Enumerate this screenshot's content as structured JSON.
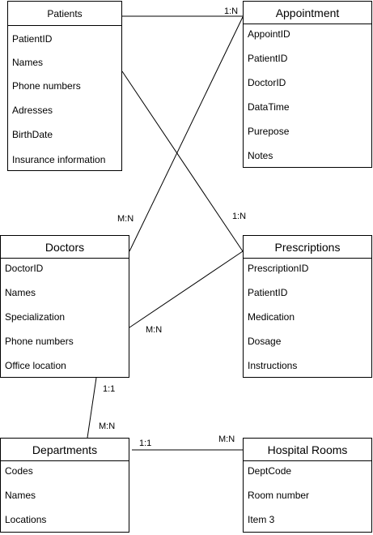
{
  "entities": {
    "patients": {
      "title": "Patients",
      "fields": [
        "PatientID",
        "Names",
        "Phone numbers",
        "Adresses",
        "BirthDate",
        "Insurance information"
      ]
    },
    "appointment": {
      "title": "Appointment",
      "fields": [
        "AppointID",
        "PatientID",
        "DoctorID",
        "DataTime",
        "Purepose",
        "Notes"
      ]
    },
    "doctors": {
      "title": "Doctors",
      "fields": [
        "DoctorID",
        "Names",
        "Specialization",
        "Phone numbers",
        "Office location"
      ]
    },
    "prescriptions": {
      "title": "Prescriptions",
      "fields": [
        "PrescriptionID",
        "PatientID",
        "Medication",
        "Dosage",
        "Instructions"
      ]
    },
    "departments": {
      "title": "Departments",
      "fields": [
        "Codes",
        "Names",
        "Locations"
      ]
    },
    "rooms": {
      "title": "Hospital Rooms",
      "fields": [
        "DeptCode",
        "Room number",
        "Item 3"
      ]
    }
  },
  "relationships": {
    "patients_appointment": "1:N",
    "doctors_appointment": "M:N",
    "patients_prescriptions": "1:N",
    "doctors_prescriptions": "M:N",
    "doctors_departments_top": "1:1",
    "doctors_departments_bottom": "M:N",
    "departments_rooms_left": "1:1",
    "departments_rooms_right": "M:N"
  }
}
